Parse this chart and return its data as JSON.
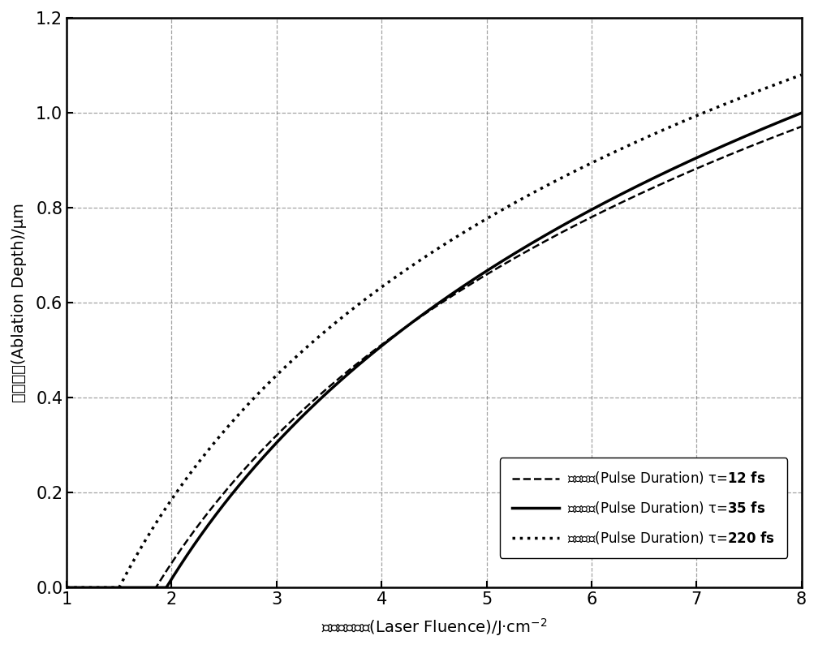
{
  "background_color": "#ffffff",
  "curve_color": "#000000",
  "grid_color": "#666666",
  "xlim": [
    1,
    8
  ],
  "ylim": [
    0,
    1.2
  ],
  "xticks": [
    1,
    2,
    3,
    4,
    5,
    6,
    7,
    8
  ],
  "yticks": [
    0,
    0.2,
    0.4,
    0.6,
    0.8,
    1.0,
    1.2
  ],
  "xlabel": "激光能量密度(Laser Fluence)/J·cm$^{-2}$",
  "ylabel": "烧蛀深度(Ablation Depth)/μm",
  "curves": [
    {
      "F_th": 1.85,
      "alpha": 0.58,
      "beta": 1.8,
      "ls": "--",
      "lw": 1.8,
      "label_plain": "脉冲宽度(Pulse Duration) τ=",
      "label_bold": "12 fs"
    },
    {
      "F_th": 1.95,
      "alpha": 0.58,
      "beta": 1.8,
      "ls": "-",
      "lw": 2.5,
      "label_plain": "脉冲宽度(Pulse Duration) τ=",
      "label_bold": "35 fs"
    },
    {
      "F_th": 1.5,
      "alpha": 0.58,
      "beta": 1.8,
      "ls": ":",
      "lw": 2.5,
      "label_plain": "脉冲宽度(Pulse Duration) τ=",
      "label_bold": "220 fs"
    }
  ],
  "tick_fontsize": 15,
  "label_fontsize": 14,
  "legend_fontsize": 12
}
